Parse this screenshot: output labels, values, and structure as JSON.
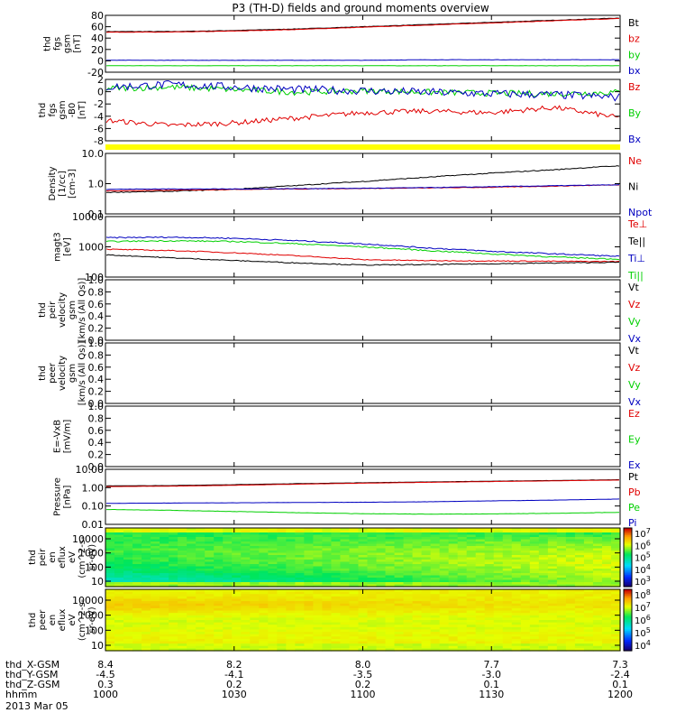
{
  "title": "P3 (TH-D) fields and ground moments overview",
  "colors": {
    "black": "#000000",
    "red": "#e00000",
    "green": "#00d000",
    "blue": "#0000c0",
    "yellow": "#ffff00",
    "frame": "#000000"
  },
  "time_axis": {
    "tick_labels": [
      "1000",
      "1030",
      "1100",
      "1130",
      "1200"
    ],
    "row_labels": [
      "thd_X-GSM",
      "thd_Y-GSM",
      "thd_Z-GSM",
      "hhmm",
      "2013 Mar 05"
    ],
    "x_gsm": [
      "8.4",
      "8.2",
      "8.0",
      "7.7",
      "7.3"
    ],
    "y_gsm": [
      "-4.5",
      "-4.1",
      "-3.5",
      "-3.0",
      "-2.4"
    ],
    "z_gsm": [
      "0.3",
      "0.2",
      "0.2",
      "0.1",
      "0.1"
    ]
  },
  "chart_data": [
    {
      "type": "line",
      "ylabel": [
        "thd",
        "fgs",
        "gsm",
        "[nT]"
      ],
      "ylim": [
        -20,
        85
      ],
      "yticks": [
        "80",
        "60",
        "40",
        "20",
        "0",
        "-20"
      ],
      "legend": [
        {
          "name": "Bt",
          "color": "#000000"
        },
        {
          "name": "bz",
          "color": "#e00000"
        },
        {
          "name": "by",
          "color": "#00d000"
        },
        {
          "name": "bx",
          "color": "#0000c0"
        }
      ],
      "x": [
        0,
        1,
        2,
        3,
        4,
        5,
        6,
        7,
        8
      ],
      "series": [
        {
          "name": "Bt",
          "color": "#000000",
          "values": [
            55,
            55,
            57,
            60,
            64,
            68,
            72,
            76,
            80
          ],
          "noise": 0.4
        },
        {
          "name": "bz",
          "color": "#e00000",
          "values": [
            54,
            54,
            56,
            59,
            63,
            67,
            71,
            75,
            79
          ],
          "noise": 0.4
        },
        {
          "name": "by",
          "color": "#00d000",
          "values": [
            -8,
            -8,
            -8,
            -8,
            -8,
            -8,
            -8,
            -8,
            -8
          ],
          "noise": 0.3
        },
        {
          "name": "bx",
          "color": "#0000c0",
          "values": [
            2,
            2,
            2,
            2,
            2,
            3,
            3,
            3,
            3
          ],
          "noise": 0.3
        }
      ]
    },
    {
      "type": "line",
      "ylabel": [
        "thd",
        "fgs",
        "gsm",
        "-B0",
        "[nT]"
      ],
      "ylim": [
        -9,
        3
      ],
      "yticks": [
        "2",
        "0",
        "-2",
        "-4",
        "-6",
        "-8"
      ],
      "legend": [
        {
          "name": "Bz",
          "color": "#e00000"
        },
        {
          "name": "By",
          "color": "#00d000"
        },
        {
          "name": "Bx",
          "color": "#0000c0"
        }
      ],
      "x": [
        0,
        1,
        2,
        3,
        4,
        5,
        6,
        7,
        8
      ],
      "series": [
        {
          "name": "Bz",
          "color": "#e00000",
          "values": [
            -5,
            -6,
            -5.5,
            -4.5,
            -3.5,
            -3.2,
            -3.5,
            -2.5,
            -4.5
          ],
          "noise": 0.5
        },
        {
          "name": "By",
          "color": "#00d000",
          "values": [
            1.2,
            1.5,
            1,
            0.5,
            0.8,
            0.5,
            0.3,
            0.2,
            0.5
          ],
          "noise": 0.6
        },
        {
          "name": "Bx",
          "color": "#0000c0",
          "values": [
            1.5,
            2,
            1.5,
            1,
            0.8,
            0.5,
            0.2,
            0,
            -0.5
          ],
          "noise": 0.8
        }
      ]
    },
    {
      "type": "line",
      "scale": "log",
      "ylabel": [
        "Density",
        "[1/cc]",
        "[cm-3]"
      ],
      "ylim": [
        0.1,
        12
      ],
      "yticks": [
        "10.0",
        "1.0",
        "0.1"
      ],
      "legend": [
        {
          "name": "Ne",
          "color": "#e00000"
        },
        {
          "name": "Ni",
          "color": "#000000"
        },
        {
          "name": "Npot",
          "color": "#0000c0"
        }
      ],
      "x": [
        0,
        1,
        2,
        3,
        4,
        5,
        6,
        7,
        8
      ],
      "series": [
        {
          "name": "Ni",
          "color": "#000000",
          "values": [
            0.55,
            0.6,
            0.7,
            0.95,
            1.3,
            1.8,
            2.5,
            3.3,
            4.5
          ],
          "noise": 0.03
        },
        {
          "name": "Ne",
          "color": "#e00000",
          "values": [
            0.62,
            0.65,
            0.7,
            0.72,
            0.75,
            0.78,
            0.82,
            0.9,
            1.0
          ],
          "noise": 0.02
        },
        {
          "name": "Npot",
          "color": "#0000c0",
          "values": [
            0.7,
            0.72,
            0.72,
            0.74,
            0.76,
            0.8,
            0.86,
            0.93,
            1.0
          ],
          "noise": 0.02
        }
      ]
    },
    {
      "type": "line",
      "scale": "log",
      "ylabel": [
        "magt3",
        "[eV]"
      ],
      "ylim": [
        120,
        12000
      ],
      "yticks": [
        "10000",
        "1000",
        "100"
      ],
      "legend": [
        {
          "name": "Te⊥",
          "color": "#e00000"
        },
        {
          "name": "Te||",
          "color": "#000000"
        },
        {
          "name": "Ti⊥",
          "color": "#0000c0"
        },
        {
          "name": "Ti||",
          "color": "#00d000"
        }
      ],
      "x": [
        0,
        1,
        2,
        3,
        4,
        5,
        6,
        7,
        8
      ],
      "series": [
        {
          "name": "Ti⊥",
          "color": "#0000c0",
          "values": [
            2400,
            2500,
            2300,
            1900,
            1500,
            1100,
            850,
            700,
            580
          ],
          "noise": 0.04
        },
        {
          "name": "Ti||",
          "color": "#00d000",
          "values": [
            1800,
            1900,
            1800,
            1500,
            1200,
            900,
            700,
            550,
            470
          ],
          "noise": 0.04
        },
        {
          "name": "Te⊥",
          "color": "#e00000",
          "values": [
            1000,
            900,
            760,
            600,
            450,
            420,
            410,
            400,
            390
          ],
          "noise": 0.03
        },
        {
          "name": "Te||",
          "color": "#000000",
          "values": [
            650,
            520,
            420,
            350,
            300,
            310,
            330,
            350,
            370
          ],
          "noise": 0.03
        }
      ]
    },
    {
      "type": "line",
      "ylabel": [
        "thd",
        "peir",
        "velocity",
        "gsm",
        "[km/s (All Qs)]"
      ],
      "ylim": [
        0,
        1
      ],
      "yticks": [
        "1.0",
        "0.8",
        "0.6",
        "0.4",
        "0.2",
        "0.0"
      ],
      "legend": [
        {
          "name": "Vt",
          "color": "#000000"
        },
        {
          "name": "Vz",
          "color": "#e00000"
        },
        {
          "name": "Vy",
          "color": "#00d000"
        },
        {
          "name": "Vx",
          "color": "#0000c0"
        }
      ],
      "series": []
    },
    {
      "type": "line",
      "ylabel": [
        "thd",
        "peer",
        "velocity",
        "gsm",
        "[km/s (All Qs)]"
      ],
      "ylim": [
        0,
        1
      ],
      "yticks": [
        "1.0",
        "0.8",
        "0.6",
        "0.4",
        "0.2",
        "0.0"
      ],
      "legend": [
        {
          "name": "Vt",
          "color": "#000000"
        },
        {
          "name": "Vz",
          "color": "#e00000"
        },
        {
          "name": "Vy",
          "color": "#00d000"
        },
        {
          "name": "Vx",
          "color": "#0000c0"
        }
      ],
      "series": []
    },
    {
      "type": "line",
      "ylabel": [
        "E=-VxB",
        "[mV/m]"
      ],
      "ylim": [
        0,
        1
      ],
      "yticks": [
        "1.0",
        "0.8",
        "0.6",
        "0.4",
        "0.2",
        "0.0"
      ],
      "legend": [
        {
          "name": "Ez",
          "color": "#e00000"
        },
        {
          "name": "Ey",
          "color": "#00d000"
        },
        {
          "name": "Ex",
          "color": "#0000c0"
        }
      ],
      "series": []
    },
    {
      "type": "line",
      "scale": "log",
      "ylabel": [
        "Pressure",
        "[nPa]"
      ],
      "ylim": [
        0.01,
        10
      ],
      "yticks": [
        "10.00",
        "1.00",
        "0.10",
        "0.01"
      ],
      "legend": [
        {
          "name": "Pt",
          "color": "#000000"
        },
        {
          "name": "Pb",
          "color": "#e00000"
        },
        {
          "name": "Pe",
          "color": "#00d000"
        },
        {
          "name": "Pi",
          "color": "#0000c0"
        }
      ],
      "x": [
        0,
        1,
        2,
        3,
        4,
        5,
        6,
        7,
        8
      ],
      "series": [
        {
          "name": "Pt",
          "color": "#000000",
          "values": [
            1.25,
            1.3,
            1.45,
            1.65,
            1.85,
            2.05,
            2.25,
            2.45,
            2.7
          ],
          "noise": 0.01
        },
        {
          "name": "Pb",
          "color": "#e00000",
          "values": [
            1.15,
            1.2,
            1.35,
            1.55,
            1.75,
            1.95,
            2.15,
            2.35,
            2.6
          ],
          "noise": 0.01
        },
        {
          "name": "Pi",
          "color": "#0000c0",
          "values": [
            0.14,
            0.145,
            0.15,
            0.155,
            0.16,
            0.17,
            0.19,
            0.21,
            0.24
          ],
          "noise": 0.01
        },
        {
          "name": "Pe",
          "color": "#00d000",
          "values": [
            0.065,
            0.058,
            0.05,
            0.043,
            0.038,
            0.036,
            0.037,
            0.04,
            0.045
          ],
          "noise": 0.015
        }
      ]
    },
    {
      "type": "heatmap",
      "ylabel": [
        "thd",
        "peir",
        "en",
        "eflux",
        "eV",
        "(cm^2-s-",
        "sr-eV)"
      ],
      "yticks": [
        "10000",
        "1000",
        "100",
        "10"
      ],
      "colorbar_ticks": [
        "10^7",
        "10^6",
        "10^5",
        "10^4",
        "10^3"
      ]
    },
    {
      "type": "heatmap",
      "ylabel": [
        "thd",
        "peer",
        "en",
        "eflux",
        "eV",
        "(cm^2-s-",
        "sr-eV)"
      ],
      "yticks": [
        "10000",
        "1000",
        "100",
        "10"
      ],
      "colorbar_ticks": [
        "10^8",
        "10^7",
        "10^6",
        "10^5",
        "10^4"
      ]
    }
  ]
}
